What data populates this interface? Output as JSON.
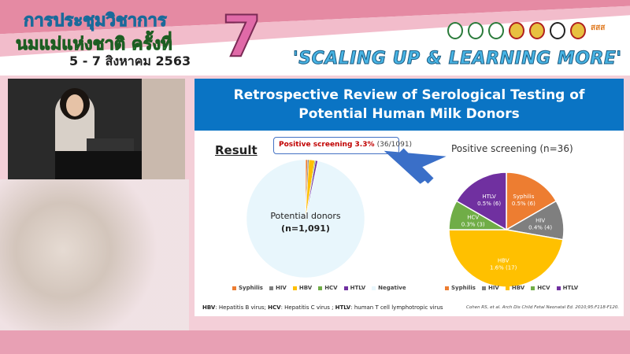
{
  "banner": {
    "line1": "การประชุมวิชาการ",
    "line2": "นมแม่แห่งชาติ ครั้งที่",
    "number": "7",
    "dates": "5 - 7 สิงหาคม 2563",
    "slogan": "'SCALING UP & LEARNING MORE'",
    "logo_text": "สสส"
  },
  "slide": {
    "title_line1": "Retrospective Review of Serological Testing of",
    "title_line2": "Potential Human Milk Donors",
    "result_heading": "Result",
    "callout_bold": "Positive screening 3.3%",
    "callout_ratio": "(36/1091)",
    "left_pie": {
      "label_line1": "Potential donors",
      "label_line2": "(n=1,091)"
    },
    "right_title": "Positive screening (n=36)",
    "footnote_parts": [
      "HBV",
      ": Hepatitis B virus; ",
      "HCV",
      ": Hepatitis C virus ; ",
      "HTLV",
      ": human T cell lymphotropic virus"
    ],
    "citation": "Cohen RS, et al. Arch Dis Child Fetal Neonatal Ed. 2010;95:F118-F120."
  },
  "chart_data": [
    {
      "type": "pie",
      "categories": [
        "Syphilis",
        "HIV",
        "HBV",
        "HCV",
        "HTLV",
        "Negative"
      ],
      "values": [
        6,
        4,
        17,
        3,
        6,
        1055
      ],
      "center_label": "Potential donors (n=1,091)",
      "legend": [
        "Syphilis",
        "HIV",
        "HBV",
        "HCV",
        "HTLV",
        "Negative"
      ],
      "legend_position": "bottom",
      "colors": [
        "#ed7d31",
        "#7f7f7f",
        "#ffc000",
        "#70ad47",
        "#7030a0",
        "#e8f6fc"
      ]
    },
    {
      "type": "pie",
      "title": "Positive screening (n=36)",
      "categories": [
        "Syphilis",
        "HIV",
        "HBV",
        "HCV",
        "HTLV"
      ],
      "values": [
        6,
        4,
        17,
        3,
        6
      ],
      "data_labels": [
        "0.5% (6)",
        "0.4% (4)",
        "1.6% (17)",
        "0.3% (3)",
        "0.5% (6)"
      ],
      "legend": [
        "Syphilis",
        "HIV",
        "HBV",
        "HCV",
        "HTLV"
      ],
      "legend_position": "bottom",
      "colors": [
        "#ed7d31",
        "#7f7f7f",
        "#ffc000",
        "#70ad47",
        "#7030a0"
      ]
    }
  ]
}
